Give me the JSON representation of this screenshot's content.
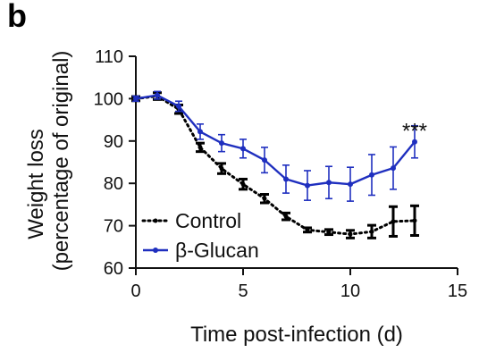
{
  "panel_label": "b",
  "chart_data": {
    "type": "line",
    "xlabel": "Time post-infection (d)",
    "ylabel": [
      "Weight loss",
      "(percentage of original)"
    ],
    "xlim": [
      0,
      15
    ],
    "ylim": [
      60,
      110
    ],
    "xticks": [
      0,
      5,
      10,
      15
    ],
    "yticks": [
      60,
      70,
      80,
      90,
      100,
      110
    ],
    "grid": false,
    "legend_position": "bottom-left",
    "series": [
      {
        "name": "Control",
        "color": "#000000",
        "style": "dotted",
        "x": [
          0,
          1,
          2,
          3,
          4,
          5,
          6,
          7,
          8,
          9,
          10,
          11,
          12,
          13
        ],
        "y": [
          100,
          100.6,
          97.5,
          88.5,
          83.5,
          79.8,
          76.4,
          72.2,
          69.0,
          68.5,
          68.0,
          68.6,
          71.0,
          71.2
        ],
        "err": [
          0.5,
          0.8,
          1.0,
          1.0,
          1.2,
          1.2,
          1.0,
          0.8,
          0.5,
          0.6,
          0.9,
          1.5,
          3.5,
          3.5
        ]
      },
      {
        "name": "β-Glucan",
        "color": "#1f2fbf",
        "style": "solid",
        "x": [
          0,
          1,
          2,
          3,
          4,
          5,
          6,
          7,
          8,
          9,
          10,
          11,
          12,
          13
        ],
        "y": [
          100,
          100.8,
          98.2,
          92.2,
          89.5,
          88.2,
          85.5,
          81.0,
          79.5,
          80.2,
          79.8,
          82.0,
          83.6,
          89.8
        ],
        "err": [
          0.6,
          0.9,
          1.2,
          1.8,
          2.0,
          2.2,
          3.0,
          3.3,
          3.5,
          3.8,
          4.0,
          4.8,
          5.0,
          3.8
        ]
      }
    ],
    "annotations": [
      {
        "text": "***",
        "x": 13,
        "y": 94.5
      }
    ]
  }
}
